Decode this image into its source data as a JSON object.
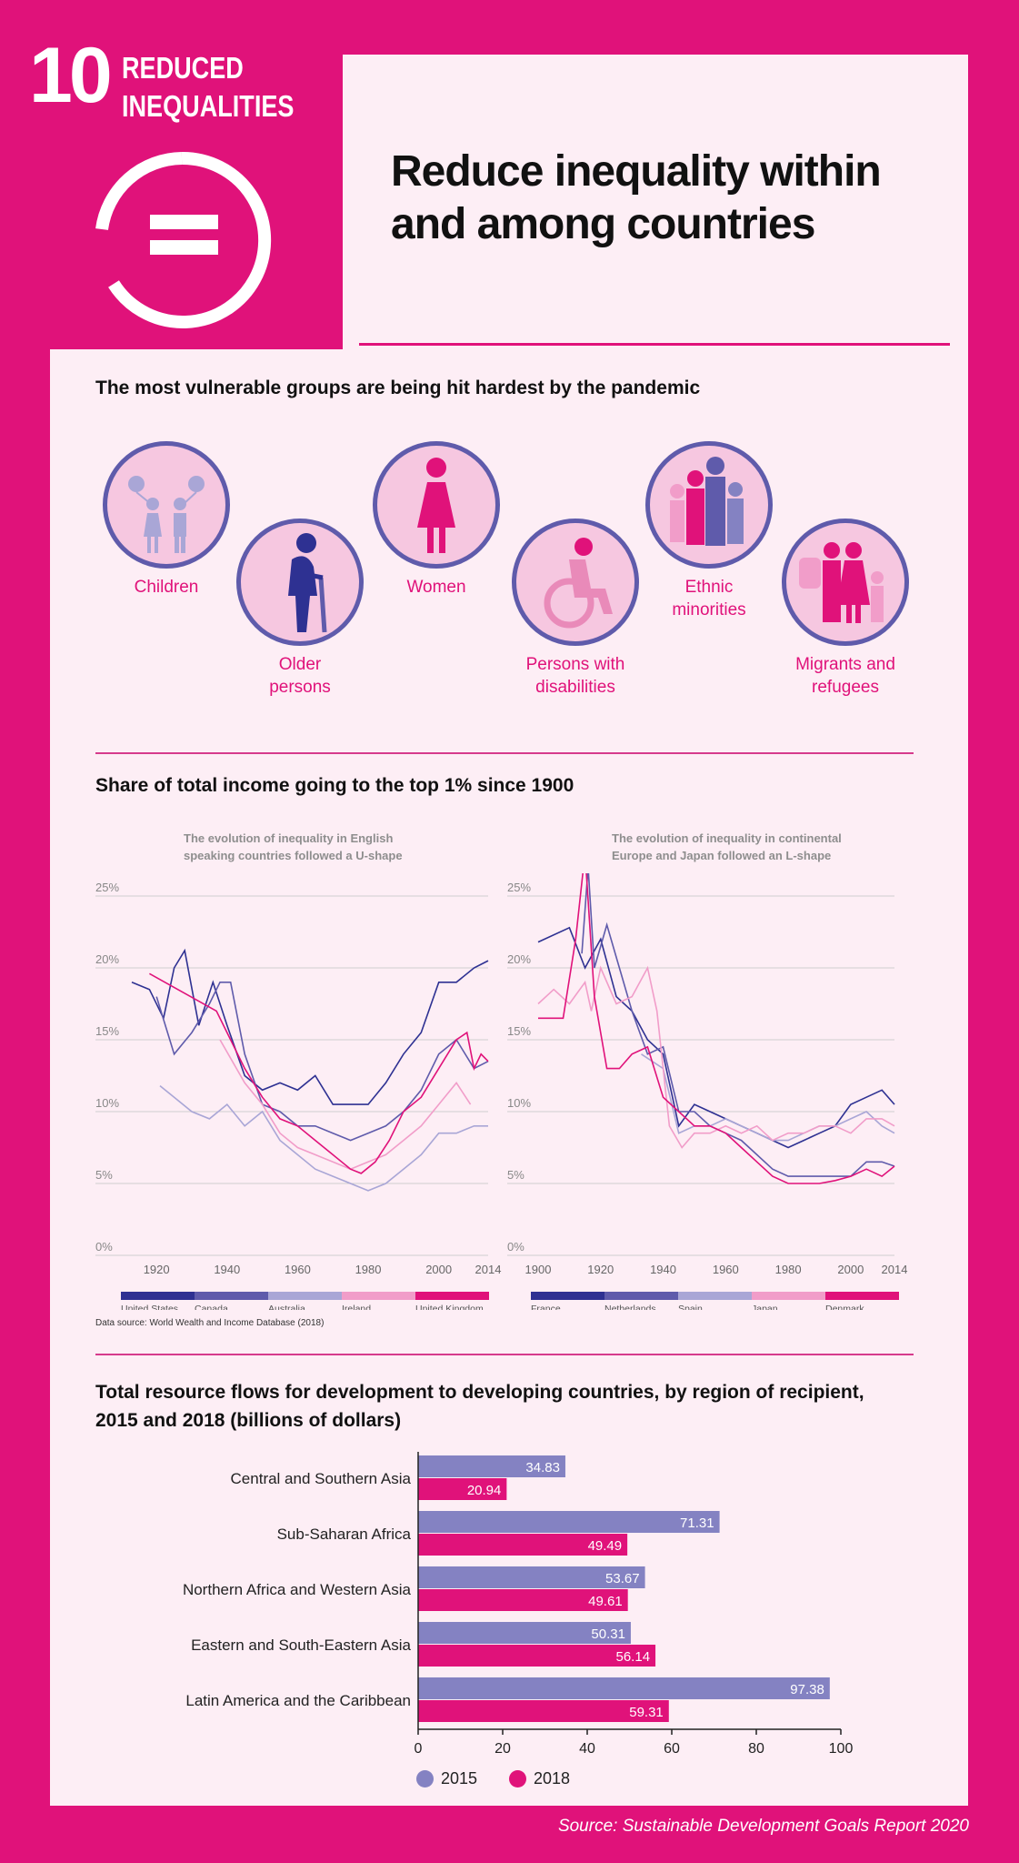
{
  "sdg": {
    "number": "10",
    "name_line1": "REDUCED",
    "name_line2": "INEQUALITIES"
  },
  "title_line1": "Reduce inequality within",
  "title_line2": "and among countries",
  "section1": {
    "title": "The most vulnerable groups are being hit hardest by the pandemic",
    "groups": [
      {
        "label1": "Children",
        "label2": "",
        "icon": "children-icon"
      },
      {
        "label1": "Older",
        "label2": "persons",
        "icon": "older-person-icon"
      },
      {
        "label1": "Women",
        "label2": "",
        "icon": "woman-icon"
      },
      {
        "label1": "Persons with",
        "label2": "disabilities",
        "icon": "wheelchair-icon"
      },
      {
        "label1": "Ethnic",
        "label2": "minorities",
        "icon": "ethnic-minorities-icon"
      },
      {
        "label1": "Migrants and",
        "label2": "refugees",
        "icon": "migrants-icon"
      }
    ]
  },
  "section2": {
    "title": "Share of total income going to the top 1% since 1900",
    "left_note_1": "The evolution of inequality in English",
    "left_note_2": "speaking countries followed a U-shape",
    "right_note_1": "The evolution of inequality in continental",
    "right_note_2": "Europe and Japan followed an L-shape",
    "source": "Data source: World Wealth and Income Database (2018)"
  },
  "section3": {
    "title_line1": "Total resource flows for development to developing countries, by region of recipient,",
    "title_line2": "2015 and 2018 (billions of dollars)"
  },
  "footer": "Source: Sustainable Development Goals Report 2020",
  "colors": {
    "magenta": "#e0127a",
    "purple": "#8482c2",
    "navy": "#2e3192",
    "frame": "#e0127a"
  },
  "chart_data": [
    {
      "type": "line",
      "title": "",
      "ylim": [
        0,
        25
      ],
      "yticks": [
        "0%",
        "5%",
        "10%",
        "15%",
        "20%",
        "25%"
      ],
      "xticks": [
        "1920",
        "1940",
        "1960",
        "1980",
        "2000",
        "2014"
      ],
      "xlim": [
        1913,
        2014
      ],
      "grid": true,
      "legend_position": "bottom",
      "series": [
        {
          "name": "United States",
          "color": "#2e3192",
          "points": [
            [
              1913,
              19
            ],
            [
              1918,
              18.5
            ],
            [
              1922,
              16.5
            ],
            [
              1925,
              20
            ],
            [
              1928,
              21.2
            ],
            [
              1932,
              16
            ],
            [
              1936,
              19
            ],
            [
              1940,
              16
            ],
            [
              1945,
              12.5
            ],
            [
              1950,
              11.5
            ],
            [
              1955,
              12
            ],
            [
              1960,
              11.5
            ],
            [
              1965,
              12.5
            ],
            [
              1970,
              10.5
            ],
            [
              1975,
              10.5
            ],
            [
              1980,
              10.5
            ],
            [
              1985,
              12
            ],
            [
              1990,
              14
            ],
            [
              1995,
              15.5
            ],
            [
              2000,
              19
            ],
            [
              2005,
              19
            ],
            [
              2010,
              20
            ],
            [
              2014,
              20.5
            ]
          ]
        },
        {
          "name": "Canada",
          "color": "#5f5bab",
          "points": [
            [
              1920,
              18
            ],
            [
              1925,
              14
            ],
            [
              1930,
              15.5
            ],
            [
              1935,
              17.5
            ],
            [
              1938,
              19
            ],
            [
              1941,
              19
            ],
            [
              1945,
              14
            ],
            [
              1950,
              10.5
            ],
            [
              1955,
              10
            ],
            [
              1960,
              9
            ],
            [
              1965,
              9
            ],
            [
              1970,
              8.5
            ],
            [
              1975,
              8
            ],
            [
              1980,
              8.5
            ],
            [
              1985,
              9
            ],
            [
              1990,
              10
            ],
            [
              1995,
              11.5
            ],
            [
              2000,
              14
            ],
            [
              2005,
              15
            ],
            [
              2010,
              13
            ],
            [
              2014,
              13.5
            ]
          ]
        },
        {
          "name": "Australia",
          "color": "#a9a6d6",
          "points": [
            [
              1921,
              11.8
            ],
            [
              1925,
              11
            ],
            [
              1930,
              10
            ],
            [
              1935,
              9.5
            ],
            [
              1940,
              10.5
            ],
            [
              1945,
              9
            ],
            [
              1950,
              10
            ],
            [
              1955,
              8
            ],
            [
              1960,
              7
            ],
            [
              1965,
              6
            ],
            [
              1970,
              5.5
            ],
            [
              1975,
              5
            ],
            [
              1980,
              4.5
            ],
            [
              1985,
              5
            ],
            [
              1990,
              6
            ],
            [
              1995,
              7
            ],
            [
              2000,
              8.5
            ],
            [
              2005,
              8.5
            ],
            [
              2010,
              9
            ],
            [
              2014,
              9
            ]
          ]
        },
        {
          "name": "Ireland",
          "color": "#f19dc9",
          "points": [
            [
              1938,
              15
            ],
            [
              1945,
              12
            ],
            [
              1950,
              10.5
            ],
            [
              1955,
              8.5
            ],
            [
              1960,
              7.5
            ],
            [
              1965,
              7
            ],
            [
              1970,
              6.5
            ],
            [
              1975,
              6
            ],
            [
              1980,
              6.5
            ],
            [
              1985,
              7
            ],
            [
              1990,
              8
            ],
            [
              1995,
              9
            ],
            [
              2000,
              10.5
            ],
            [
              2005,
              12
            ],
            [
              2009,
              10.5
            ]
          ]
        },
        {
          "name": "United Kingdom",
          "color": "#e0127a",
          "points": [
            [
              1918,
              19.6
            ],
            [
              1937,
              17
            ],
            [
              1945,
              13
            ],
            [
              1950,
              11
            ],
            [
              1955,
              9.5
            ],
            [
              1960,
              9
            ],
            [
              1965,
              8
            ],
            [
              1970,
              7
            ],
            [
              1975,
              6
            ],
            [
              1978,
              5.7
            ],
            [
              1982,
              6.5
            ],
            [
              1986,
              8
            ],
            [
              1990,
              10
            ],
            [
              1995,
              11
            ],
            [
              2000,
              13
            ],
            [
              2005,
              15
            ],
            [
              2008,
              15.5
            ],
            [
              2010,
              13
            ],
            [
              2012,
              14
            ],
            [
              2014,
              13.5
            ]
          ]
        }
      ]
    },
    {
      "type": "line",
      "title": "",
      "ylim": [
        0,
        25
      ],
      "yticks": [
        "0%",
        "5%",
        "10%",
        "15%",
        "20%",
        "25%"
      ],
      "xticks": [
        "1900",
        "1920",
        "1940",
        "1960",
        "1980",
        "2000",
        "2014"
      ],
      "xlim": [
        1900,
        2014
      ],
      "grid": true,
      "legend_position": "bottom",
      "series": [
        {
          "name": "France",
          "color": "#2e3192",
          "points": [
            [
              1900,
              21.8
            ],
            [
              1910,
              22.8
            ],
            [
              1915,
              20
            ],
            [
              1920,
              22
            ],
            [
              1925,
              18
            ],
            [
              1930,
              17
            ],
            [
              1935,
              15
            ],
            [
              1940,
              14
            ],
            [
              1945,
              9
            ],
            [
              1950,
              10.5
            ],
            [
              1955,
              10
            ],
            [
              1960,
              9.5
            ],
            [
              1965,
              9
            ],
            [
              1970,
              8.5
            ],
            [
              1975,
              8
            ],
            [
              1980,
              7.5
            ],
            [
              1985,
              8
            ],
            [
              1990,
              8.5
            ],
            [
              1995,
              9
            ],
            [
              2000,
              10.5
            ],
            [
              2005,
              11
            ],
            [
              2010,
              11.5
            ],
            [
              2014,
              10.5
            ]
          ]
        },
        {
          "name": "Netherlands",
          "color": "#5f5bab",
          "points": [
            [
              1914,
              21
            ],
            [
              1916,
              27
            ],
            [
              1918,
              20
            ],
            [
              1922,
              23
            ],
            [
              1926,
              20
            ],
            [
              1930,
              17
            ],
            [
              1935,
              14
            ],
            [
              1940,
              14.5
            ],
            [
              1945,
              10
            ],
            [
              1950,
              10
            ],
            [
              1955,
              9
            ],
            [
              1960,
              8.5
            ],
            [
              1965,
              8
            ],
            [
              1970,
              7
            ],
            [
              1975,
              6
            ],
            [
              1980,
              5.5
            ],
            [
              1985,
              5.5
            ],
            [
              1990,
              5.5
            ],
            [
              1995,
              5.5
            ],
            [
              2000,
              5.5
            ],
            [
              2005,
              6.5
            ],
            [
              2010,
              6.5
            ],
            [
              2014,
              6.2
            ]
          ]
        },
        {
          "name": "Spain",
          "color": "#a9a6d6",
          "points": [
            [
              1933,
              14
            ],
            [
              1940,
              13
            ],
            [
              1945,
              8.5
            ],
            [
              1950,
              9
            ],
            [
              1955,
              9
            ],
            [
              1960,
              9.5
            ],
            [
              1965,
              9
            ],
            [
              1970,
              8.5
            ],
            [
              1975,
              8
            ],
            [
              1980,
              8
            ],
            [
              1985,
              8.5
            ],
            [
              1990,
              9
            ],
            [
              1995,
              9
            ],
            [
              2000,
              9.5
            ],
            [
              2005,
              10
            ],
            [
              2010,
              9
            ],
            [
              2014,
              8.5
            ]
          ]
        },
        {
          "name": "Japan",
          "color": "#f19dc9",
          "points": [
            [
              1900,
              17.5
            ],
            [
              1905,
              18.5
            ],
            [
              1910,
              17.5
            ],
            [
              1915,
              19
            ],
            [
              1917,
              17
            ],
            [
              1920,
              20
            ],
            [
              1925,
              17.5
            ],
            [
              1930,
              18
            ],
            [
              1935,
              20
            ],
            [
              1938,
              17
            ],
            [
              1942,
              9
            ],
            [
              1946,
              7.5
            ],
            [
              1950,
              8.5
            ],
            [
              1955,
              8.5
            ],
            [
              1960,
              9
            ],
            [
              1965,
              8.5
            ],
            [
              1970,
              9
            ],
            [
              1975,
              8
            ],
            [
              1980,
              8.5
            ],
            [
              1985,
              8.5
            ],
            [
              1990,
              9
            ],
            [
              1995,
              9
            ],
            [
              2000,
              8.5
            ],
            [
              2005,
              9.5
            ],
            [
              2010,
              9.5
            ],
            [
              2014,
              9
            ]
          ]
        },
        {
          "name": "Denmark",
          "color": "#e0127a",
          "points": [
            [
              1900,
              16.5
            ],
            [
              1908,
              16.5
            ],
            [
              1912,
              22
            ],
            [
              1915,
              28
            ],
            [
              1918,
              18
            ],
            [
              1922,
              13
            ],
            [
              1926,
              13
            ],
            [
              1930,
              14
            ],
            [
              1935,
              14.5
            ],
            [
              1940,
              11
            ],
            [
              1945,
              10
            ],
            [
              1950,
              9
            ],
            [
              1955,
              9
            ],
            [
              1960,
              8.5
            ],
            [
              1965,
              7.5
            ],
            [
              1970,
              6.5
            ],
            [
              1975,
              5.5
            ],
            [
              1980,
              5
            ],
            [
              1985,
              5
            ],
            [
              1990,
              5
            ],
            [
              1995,
              5.2
            ],
            [
              2000,
              5.5
            ],
            [
              2005,
              6
            ],
            [
              2010,
              5.5
            ],
            [
              2014,
              6.2
            ]
          ]
        }
      ]
    },
    {
      "type": "bar",
      "orientation": "horizontal",
      "title": "",
      "categories": [
        "Central and Southern Asia",
        "Sub-Saharan Africa",
        "Northern Africa and Western Asia",
        "Eastern and South-Eastern Asia",
        "Latin America and the Caribbean"
      ],
      "series": [
        {
          "name": "2015",
          "color": "#8482c2",
          "values": [
            34.83,
            71.31,
            53.67,
            50.31,
            97.38
          ]
        },
        {
          "name": "2018",
          "color": "#e0127a",
          "values": [
            20.94,
            49.49,
            49.61,
            56.14,
            59.31
          ]
        }
      ],
      "xlim": [
        0,
        100
      ],
      "xticks": [
        "0",
        "20",
        "40",
        "60",
        "80",
        "100"
      ],
      "legend_position": "bottom"
    }
  ]
}
